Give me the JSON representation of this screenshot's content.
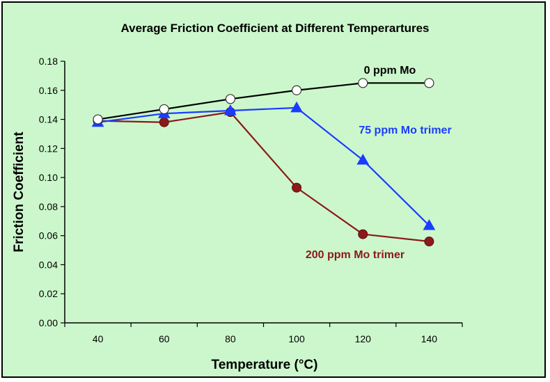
{
  "chart_data": {
    "type": "line",
    "title": "Average Friction Coefficient at Different Temperartures",
    "xlabel": "Temperature (°C)",
    "ylabel": "Friction Coefficient",
    "x": [
      40,
      60,
      80,
      100,
      120,
      140
    ],
    "xlim": [
      30,
      150
    ],
    "ylim": [
      0,
      0.18
    ],
    "yticks": [
      "0.00",
      "0.02",
      "0.04",
      "0.06",
      "0.08",
      "0.10",
      "0.12",
      "0.14",
      "0.16",
      "0.18"
    ],
    "xticks": [
      "40",
      "60",
      "80",
      "100",
      "120",
      "140"
    ],
    "grid": false,
    "series": [
      {
        "name": "0 ppm Mo",
        "color": "#000000",
        "marker": "circle-open",
        "marker_color": "#ffffff",
        "values": [
          0.14,
          0.147,
          0.154,
          0.16,
          0.165,
          0.165
        ]
      },
      {
        "name": "75 ppm Mo trimer",
        "color": "#1a3cff",
        "marker": "triangle",
        "marker_color": "#1a3cff",
        "values": [
          0.138,
          0.144,
          0.146,
          0.148,
          0.112,
          0.067
        ]
      },
      {
        "name": "200 ppm Mo trimer",
        "color": "#8b1a1a",
        "marker": "circle",
        "marker_color": "#8b1a1a",
        "values": [
          0.139,
          0.138,
          0.145,
          0.093,
          0.061,
          0.056
        ]
      }
    ]
  }
}
